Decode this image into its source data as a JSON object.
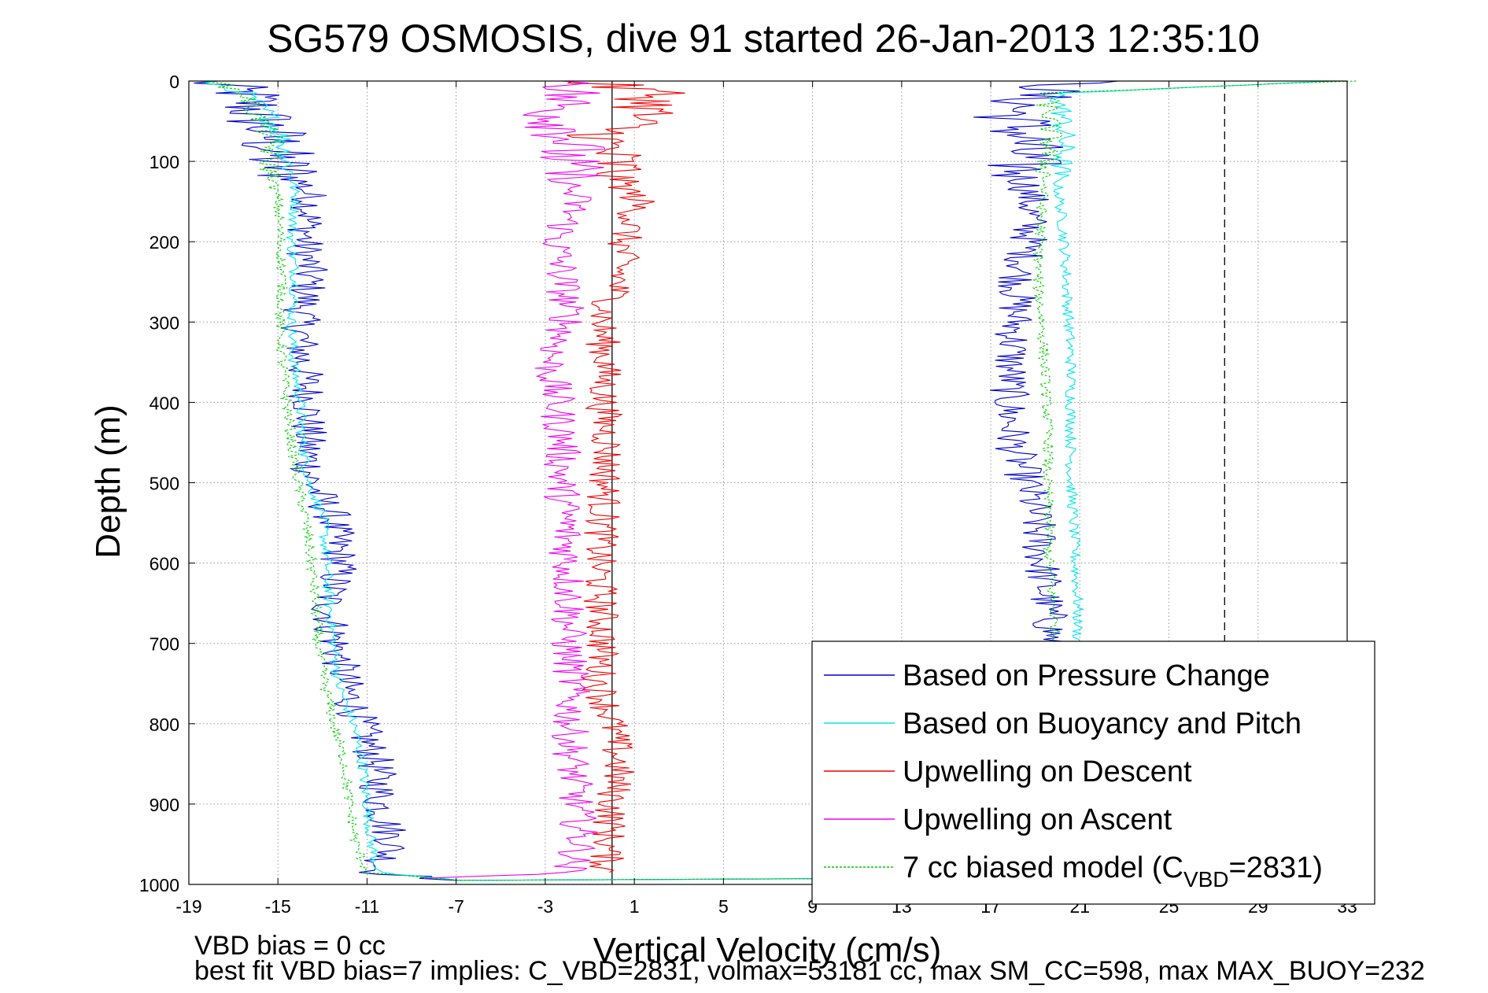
{
  "chart_data": {
    "type": "line",
    "title": "SG579 OSMOSIS, dive 91 started 26-Jan-2013 12:35:10",
    "xlabel": "Vertical Velocity (cm/s)",
    "ylabel": "Depth (m)",
    "xlim": [
      -19,
      33
    ],
    "ylim": [
      1000,
      0
    ],
    "xticks": [
      "-19",
      "-15",
      "-11",
      "-7",
      "-3",
      "1",
      "5",
      "9",
      "13",
      "17",
      "21",
      "25",
      "29",
      "33"
    ],
    "yticks": [
      "0",
      "100",
      "200",
      "300",
      "400",
      "500",
      "600",
      "700",
      "800",
      "900",
      "1000"
    ],
    "grid": true,
    "legend_position": "bottom-right",
    "reference_lines": [
      {
        "x": 0,
        "style": "solid"
      },
      {
        "x": 27.5,
        "style": "dashed"
      }
    ],
    "series": [
      {
        "name": "Based on Pressure Change",
        "color": "#0000cc",
        "style": "solid",
        "depth": [
          0,
          15,
          40,
          70,
          100,
          130,
          150,
          200,
          250,
          300,
          350,
          400,
          450,
          500,
          540,
          600,
          650,
          700,
          750,
          800,
          850,
          900,
          950,
          985,
          995
        ],
        "descent": [
          -18.3,
          -16.5,
          -16.0,
          -15.3,
          -15.2,
          -13.8,
          -13.5,
          -13.8,
          -13.6,
          -14.0,
          -13.9,
          -13.6,
          -13.7,
          -13.5,
          -12.6,
          -12.2,
          -12.8,
          -12.4,
          -12.0,
          -11.3,
          -10.6,
          -10.4,
          -9.8,
          -10.6,
          -7.0
        ],
        "ascent": [
          21.0,
          19.0,
          18.0,
          18.5,
          18.3,
          18.6,
          18.8,
          18.7,
          18.2,
          18.1,
          17.9,
          17.8,
          18.0,
          18.6,
          19.0,
          19.3,
          19.5,
          19.8
        ]
      },
      {
        "name": "Based on Buoyancy and Pitch",
        "color": "#00e5ee",
        "style": "solid",
        "depth": [
          0,
          15,
          40,
          70,
          100,
          130,
          150,
          200,
          250,
          300,
          350,
          400,
          450,
          500,
          540,
          600,
          650,
          700,
          750,
          800,
          850,
          900,
          950,
          985,
          995
        ],
        "descent": [
          -18.3,
          -16.5,
          -15.5,
          -14.8,
          -14.6,
          -14.3,
          -14.2,
          -14.4,
          -14.2,
          -14.4,
          -14.3,
          -14.0,
          -13.9,
          -13.6,
          -13.0,
          -12.8,
          -12.7,
          -12.5,
          -12.3,
          -11.6,
          -11.2,
          -11.0,
          -10.8,
          -10.5,
          -7.0
        ],
        "ascent": [
          32.5,
          20.0,
          20.2,
          20.3,
          20.2,
          20.0,
          20.1,
          20.3,
          20.4,
          20.5,
          20.6,
          20.6,
          20.6,
          20.6,
          20.7,
          20.8,
          20.9,
          20.9
        ]
      },
      {
        "name": "Upwelling on Descent",
        "color": "#ee0000",
        "style": "solid",
        "depth": [
          0,
          15,
          40,
          70,
          100,
          130,
          150,
          200,
          250,
          300,
          350,
          400,
          450,
          500,
          540,
          600,
          650,
          700,
          750,
          800,
          850,
          900,
          950,
          985
        ],
        "values": [
          -1.5,
          2.0,
          1.5,
          -0.5,
          0.0,
          0.5,
          1.2,
          0.5,
          0.3,
          -0.5,
          -0.3,
          -0.4,
          -0.2,
          -0.3,
          -0.4,
          -0.6,
          -0.5,
          -0.4,
          -0.6,
          0.0,
          0.3,
          0.0,
          -0.2,
          -0.3
        ]
      },
      {
        "name": "Upwelling on Ascent",
        "color": "#ee00ee",
        "style": "solid",
        "depth": [
          0,
          15,
          40,
          70,
          100,
          130,
          150,
          200,
          250,
          300,
          350,
          400,
          450,
          500,
          540,
          600,
          650,
          700,
          750,
          800,
          850,
          900,
          950,
          985,
          993
        ],
        "values": [
          -1.0,
          -2.0,
          -2.5,
          -1.8,
          -2.2,
          -2.0,
          -1.6,
          -2.5,
          -2.2,
          -2.0,
          -2.8,
          -2.5,
          -2.2,
          -2.3,
          -2.1,
          -2.0,
          -1.9,
          -2.0,
          -1.8,
          -1.9,
          -1.8,
          -1.6,
          -1.4,
          -2.0,
          -8.0
        ]
      },
      {
        "name": "7 cc biased model (C_VBD=2831)",
        "color": "#00cc00",
        "style": "dashed",
        "depth": [
          0,
          15,
          40,
          70,
          100,
          130,
          150,
          200,
          250,
          300,
          350,
          400,
          450,
          500,
          540,
          600,
          650,
          700,
          750,
          800,
          850,
          900,
          950,
          985,
          995
        ],
        "descent": [
          -18.0,
          -16.5,
          -16.0,
          -15.3,
          -15.4,
          -15.2,
          -15.0,
          -14.9,
          -14.8,
          -14.9,
          -14.8,
          -14.6,
          -14.4,
          -14.1,
          -13.8,
          -13.5,
          -13.3,
          -13.2,
          -12.9,
          -12.5,
          -12.0,
          -11.8,
          -11.5,
          -11.0,
          -7.0
        ],
        "ascent": [
          33.0,
          19.5,
          19.6,
          19.7,
          19.5,
          19.4,
          19.3,
          19.2,
          19.1,
          19.3,
          19.4,
          19.5,
          19.6,
          19.5,
          19.6,
          19.6,
          19.8,
          19.9
        ]
      }
    ],
    "legend_labels": {
      "model_prefix": "7 cc biased model (C",
      "model_subscript": "VBD",
      "model_suffix": "=2831)"
    }
  },
  "annotations": {
    "vbd_bias": "VBD bias = 0 cc",
    "best_fit": "best fit VBD bias=7 implies: C_VBD=2831, volmax=53181 cc, max SM_CC=598, max MAX_BUOY=232"
  }
}
